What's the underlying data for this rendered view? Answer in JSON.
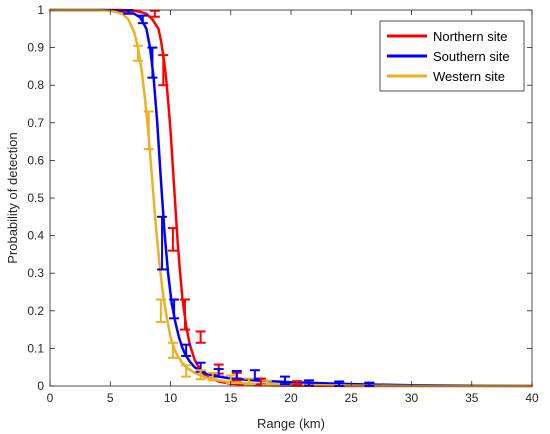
{
  "chart_data": {
    "type": "line",
    "title": "",
    "xlabel": "Range (km)",
    "ylabel": "Probability of detection",
    "xlim": [
      0,
      40
    ],
    "ylim": [
      0,
      1
    ],
    "xticks": [
      0,
      5,
      10,
      15,
      20,
      25,
      30,
      35,
      40
    ],
    "xtick_labels": [
      "0",
      "5",
      "10",
      "15",
      "20",
      "25",
      "30",
      "35",
      "40"
    ],
    "yticks": [
      0,
      0.1,
      0.2,
      0.3,
      0.4,
      0.5,
      0.6,
      0.7,
      0.8,
      0.9,
      1
    ],
    "ytick_labels": [
      "0",
      "0.1",
      "0.2",
      "0.3",
      "0.4",
      "0.5",
      "0.6",
      "0.7",
      "0.8",
      "0.9",
      "1"
    ],
    "grid": false,
    "legend_position": "top-right",
    "series": [
      {
        "name": "Northern site",
        "color": "#ff0000",
        "curve": {
          "x": [
            0,
            4,
            6,
            7,
            7.5,
            8,
            8.5,
            9,
            9.2,
            9.4,
            9.6,
            9.8,
            10,
            10.2,
            10.4,
            10.6,
            10.8,
            11,
            11.3,
            11.6,
            12,
            12.5,
            13,
            14,
            15,
            17,
            20,
            25,
            30,
            40
          ],
          "y": [
            1,
            1,
            1,
            0.998,
            0.995,
            0.99,
            0.975,
            0.95,
            0.92,
            0.88,
            0.83,
            0.76,
            0.68,
            0.58,
            0.48,
            0.38,
            0.3,
            0.23,
            0.16,
            0.11,
            0.07,
            0.04,
            0.025,
            0.012,
            0.006,
            0.002,
            0.001,
            0,
            0,
            0
          ]
        },
        "errorbars": [
          {
            "x": 6.5,
            "y": 0.998,
            "err": 0.003
          },
          {
            "x": 8.7,
            "y": 0.99,
            "err": 0.008
          },
          {
            "x": 9.4,
            "y": 0.84,
            "err": 0.04
          },
          {
            "x": 10.2,
            "y": 0.39,
            "err": 0.03
          },
          {
            "x": 11.2,
            "y": 0.19,
            "err": 0.04
          },
          {
            "x": 12.5,
            "y": 0.13,
            "err": 0.015
          },
          {
            "x": 14.0,
            "y": 0.045,
            "err": 0.012
          },
          {
            "x": 15.5,
            "y": 0.025,
            "err": 0.01
          },
          {
            "x": 17.5,
            "y": 0.012,
            "err": 0.008
          },
          {
            "x": 20.5,
            "y": 0.008,
            "err": 0.005
          }
        ]
      },
      {
        "name": "Southern site",
        "color": "#0000ff",
        "curve": {
          "x": [
            0,
            4,
            5.5,
            6.5,
            7,
            7.5,
            8,
            8.3,
            8.6,
            8.9,
            9.2,
            9.5,
            9.8,
            10.1,
            10.4,
            10.7,
            11,
            11.3,
            11.6,
            12,
            12.5,
            13,
            14,
            15,
            17,
            20,
            25,
            30,
            40
          ],
          "y": [
            1,
            1,
            0.999,
            0.995,
            0.99,
            0.98,
            0.95,
            0.9,
            0.82,
            0.7,
            0.55,
            0.41,
            0.3,
            0.22,
            0.17,
            0.13,
            0.1,
            0.08,
            0.065,
            0.05,
            0.04,
            0.032,
            0.025,
            0.02,
            0.015,
            0.01,
            0.005,
            0.002,
            0
          ]
        },
        "errorbars": [
          {
            "x": 6.5,
            "y": 0.995,
            "err": 0.005
          },
          {
            "x": 7.7,
            "y": 0.975,
            "err": 0.01
          },
          {
            "x": 8.5,
            "y": 0.86,
            "err": 0.04
          },
          {
            "x": 9.3,
            "y": 0.38,
            "err": 0.07
          },
          {
            "x": 10.3,
            "y": 0.205,
            "err": 0.025
          },
          {
            "x": 11.3,
            "y": 0.095,
            "err": 0.015
          },
          {
            "x": 12.5,
            "y": 0.05,
            "err": 0.012
          },
          {
            "x": 14.0,
            "y": 0.035,
            "err": 0.01
          },
          {
            "x": 15.5,
            "y": 0.03,
            "err": 0.01
          },
          {
            "x": 17.0,
            "y": 0.03,
            "err": 0.012
          },
          {
            "x": 19.5,
            "y": 0.015,
            "err": 0.01
          },
          {
            "x": 21.5,
            "y": 0.008,
            "err": 0.007
          },
          {
            "x": 24.0,
            "y": 0.006,
            "err": 0.006
          },
          {
            "x": 26.5,
            "y": 0.004,
            "err": 0.005
          }
        ]
      },
      {
        "name": "Western site",
        "color": "#edb120",
        "curve": {
          "x": [
            0,
            4,
            5,
            6,
            6.5,
            7,
            7.3,
            7.6,
            7.9,
            8.2,
            8.5,
            8.8,
            9.1,
            9.4,
            9.7,
            10,
            10.3,
            10.6,
            11,
            11.5,
            12,
            13,
            14,
            15,
            17,
            20,
            25,
            30,
            40
          ],
          "y": [
            1,
            1,
            0.998,
            0.99,
            0.975,
            0.94,
            0.9,
            0.84,
            0.76,
            0.66,
            0.54,
            0.42,
            0.32,
            0.24,
            0.18,
            0.13,
            0.1,
            0.08,
            0.06,
            0.045,
            0.035,
            0.022,
            0.015,
            0.01,
            0.006,
            0.003,
            0.001,
            0,
            0
          ]
        },
        "errorbars": [
          {
            "x": 7.3,
            "y": 0.885,
            "err": 0.02
          },
          {
            "x": 8.2,
            "y": 0.68,
            "err": 0.05
          },
          {
            "x": 9.2,
            "y": 0.2,
            "err": 0.03
          },
          {
            "x": 10.2,
            "y": 0.095,
            "err": 0.02
          },
          {
            "x": 11.3,
            "y": 0.04,
            "err": 0.015
          },
          {
            "x": 12.5,
            "y": 0.03,
            "err": 0.012
          },
          {
            "x": 13.5,
            "y": 0.025,
            "err": 0.01
          },
          {
            "x": 15.0,
            "y": 0.018,
            "err": 0.01
          },
          {
            "x": 16.5,
            "y": 0.012,
            "err": 0.008
          },
          {
            "x": 18.0,
            "y": 0.008,
            "err": 0.006
          }
        ]
      }
    ]
  }
}
